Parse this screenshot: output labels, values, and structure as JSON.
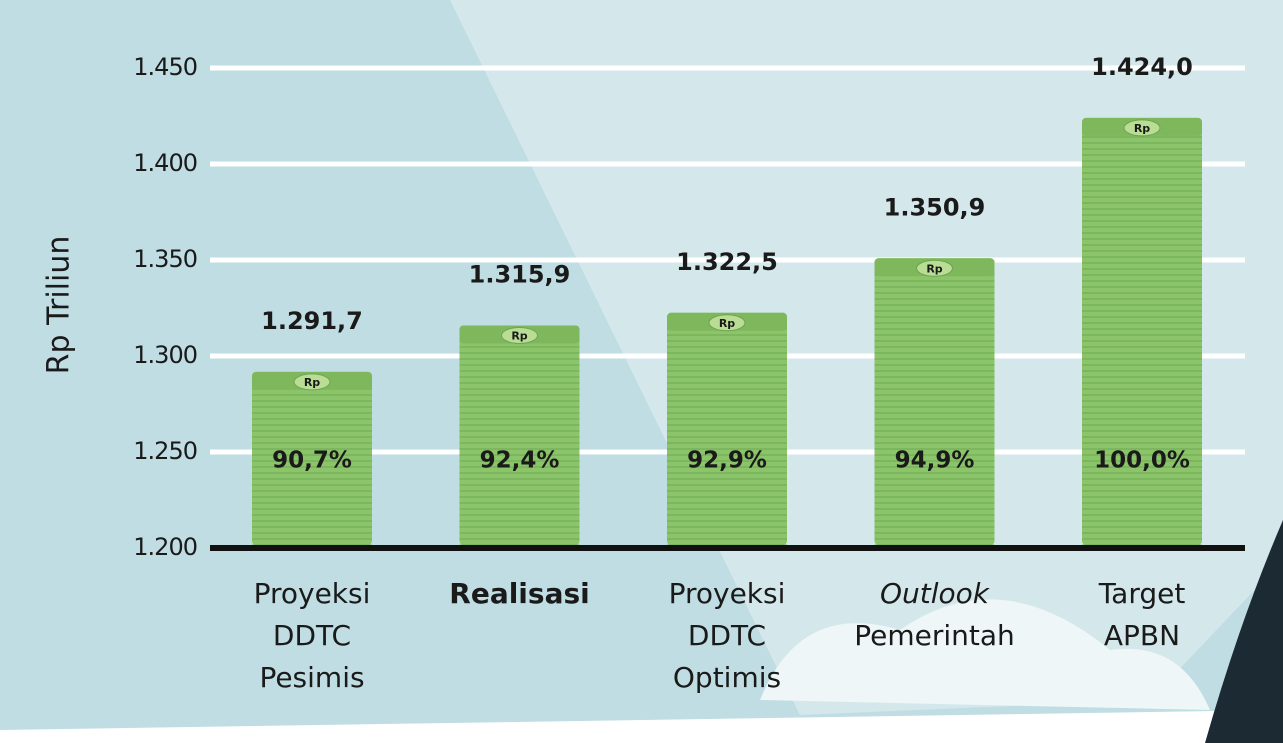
{
  "chart_data": {
    "type": "bar",
    "y_label": "Rp Triliun",
    "categories": [
      [
        "Proyeksi",
        "DDTC",
        "Pesimis"
      ],
      [
        "Realisasi"
      ],
      [
        "Proyeksi",
        "DDTC",
        "Optimis"
      ],
      [
        "Outlook",
        "Pemerintah"
      ],
      [
        "Target",
        "APBN"
      ]
    ],
    "values": [
      1291.7,
      1315.9,
      1322.5,
      1350.9,
      1424.0
    ],
    "value_labels": [
      "1.291,7",
      "1.315,9",
      "1.322,5",
      "1.350,9",
      "1.424,0"
    ],
    "shares": [
      90.7,
      92.4,
      92.9,
      94.9,
      100.0
    ],
    "share_labels": [
      "90,7%",
      "92,4%",
      "92,9%",
      "94,9%",
      "100,0%"
    ],
    "coin_label": "Rp",
    "color": "#8cc46a",
    "highlight": 1,
    "highlight_color": "#f08a24",
    "italic_line": [
      3,
      0
    ],
    "ylim": [
      1200,
      1450
    ],
    "yticks": [
      {
        "value": 1200,
        "label": "1.200"
      },
      {
        "value": 1250,
        "label": "1.250"
      },
      {
        "value": 1300,
        "label": "1.300"
      },
      {
        "value": 1350,
        "label": "1.350"
      },
      {
        "value": 1400,
        "label": "1.400"
      },
      {
        "value": 1450,
        "label": "1.450"
      }
    ],
    "grid": true
  }
}
